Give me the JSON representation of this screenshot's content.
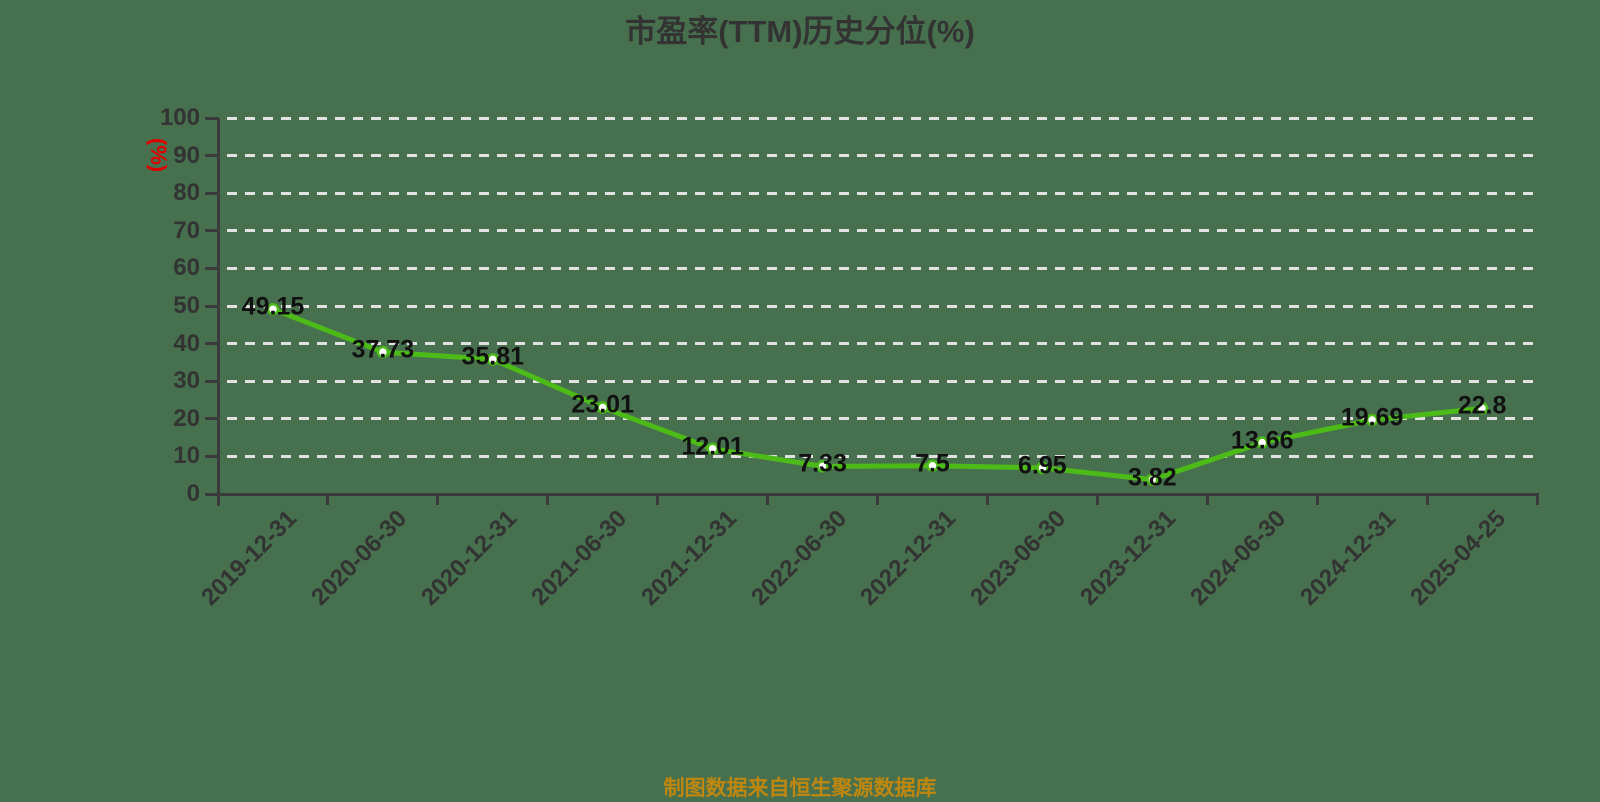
{
  "title": "市盈率(TTM)历史分位(%)",
  "footer": "制图数据来自恒生聚源数据库",
  "colors": {
    "background": "#47714e",
    "line": "#4cbb17",
    "point_fill": "#ffffff",
    "axis": "#3a3a3a",
    "tick_text": "#333333",
    "value_label_text": "#111111",
    "y_unit_label": "#e00000",
    "grid": "#e2e2e2",
    "footer_text": "#bf870f"
  },
  "chart_data": {
    "type": "line",
    "title": "市盈率(TTM)历史分位(%)",
    "ylabel": "(%)",
    "xlabel": "",
    "categories": [
      "2019-12-31",
      "2020-06-30",
      "2020-12-31",
      "2021-06-30",
      "2021-12-31",
      "2022-06-30",
      "2022-12-31",
      "2023-06-30",
      "2023-12-31",
      "2024-06-30",
      "2024-12-31",
      "2025-04-25"
    ],
    "values": [
      49.15,
      37.73,
      35.81,
      23.01,
      12.01,
      7.33,
      7.5,
      6.95,
      3.82,
      13.66,
      19.69,
      22.8
    ],
    "value_labels": [
      "49.15",
      "37.73",
      "35.81",
      "23.01",
      "12.01",
      "7.33",
      "7.5",
      "6.95",
      "3.82",
      "13.66",
      "19.69",
      "22.8"
    ],
    "ylim": [
      0,
      100
    ],
    "yticks": [
      0,
      10,
      20,
      30,
      40,
      50,
      60,
      70,
      80,
      90,
      100
    ],
    "grid": "dashed-horizontal-white",
    "legend": "none",
    "value_labels_shown": true
  }
}
